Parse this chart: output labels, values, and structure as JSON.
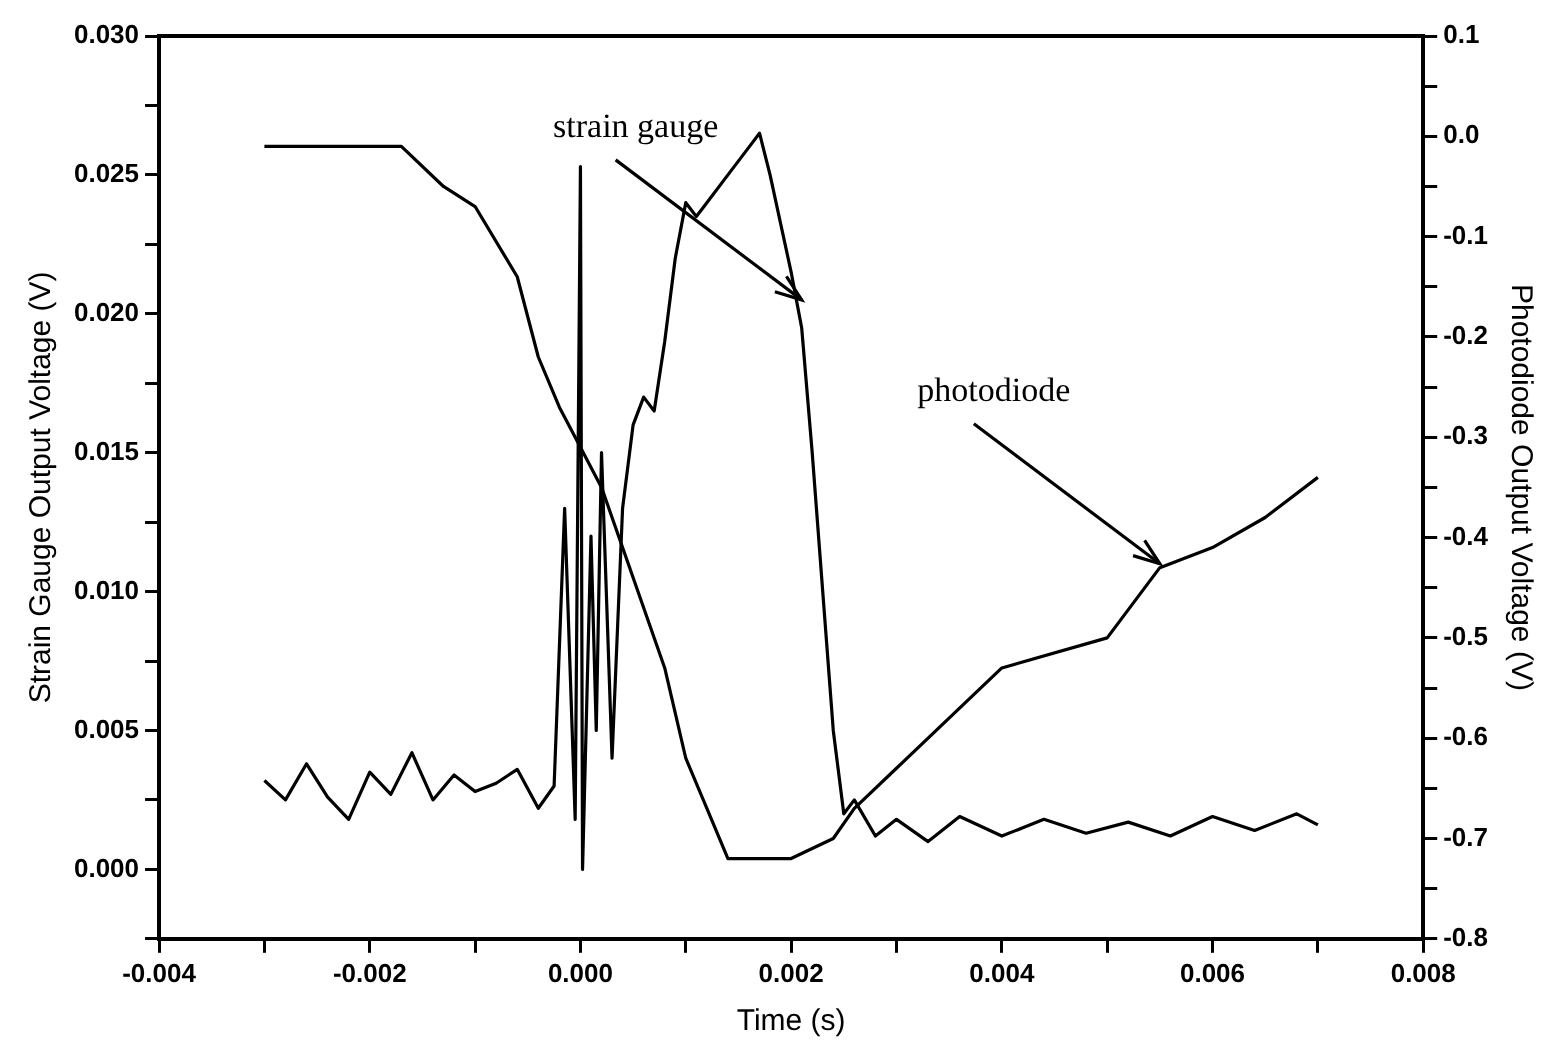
{
  "chart_data": {
    "type": "line",
    "xlabel": "Time (s)",
    "ylabel": "Strain Gauge Output Voltage (V)",
    "y2label": "Photodiode Output Voltage (V)",
    "xlim": [
      -0.004,
      0.008
    ],
    "xticks": [
      {
        "value": -0.004,
        "label": "-0.004"
      },
      {
        "value": -0.003,
        "label": null
      },
      {
        "value": -0.002,
        "label": "-0.002"
      },
      {
        "value": -0.001,
        "label": null
      },
      {
        "value": 0,
        "label": "0.000"
      },
      {
        "value": 0.001,
        "label": null
      },
      {
        "value": 0.002,
        "label": "0.002"
      },
      {
        "value": 0.003,
        "label": null
      },
      {
        "value": 0.004,
        "label": "0.004"
      },
      {
        "value": 0.005,
        "label": null
      },
      {
        "value": 0.006,
        "label": "0.006"
      },
      {
        "value": 0.007,
        "label": null
      },
      {
        "value": 0.008,
        "label": "0.008"
      }
    ],
    "ylim": [
      -0.0025,
      0.03
    ],
    "yticks": [
      {
        "value": -0.0025,
        "label": null
      },
      {
        "value": 0,
        "label": "0.000"
      },
      {
        "value": 0.0025,
        "label": null
      },
      {
        "value": 0.005,
        "label": "0.005"
      },
      {
        "value": 0.0075,
        "label": null
      },
      {
        "value": 0.01,
        "label": "0.010"
      },
      {
        "value": 0.0125,
        "label": null
      },
      {
        "value": 0.015,
        "label": "0.015"
      },
      {
        "value": 0.0175,
        "label": null
      },
      {
        "value": 0.02,
        "label": "0.020"
      },
      {
        "value": 0.0225,
        "label": null
      },
      {
        "value": 0.025,
        "label": "0.025"
      },
      {
        "value": 0.0275,
        "label": null
      },
      {
        "value": 0.03,
        "label": "0.030"
      }
    ],
    "y2lim": [
      -0.8,
      0.1
    ],
    "y2ticks": [
      {
        "value": -0.8,
        "label": "-0.8"
      },
      {
        "value": -0.75,
        "label": null
      },
      {
        "value": -0.7,
        "label": "-0.7"
      },
      {
        "value": -0.65,
        "label": null
      },
      {
        "value": -0.6,
        "label": "-0.6"
      },
      {
        "value": -0.55,
        "label": null
      },
      {
        "value": -0.5,
        "label": "-0.5"
      },
      {
        "value": -0.45,
        "label": null
      },
      {
        "value": -0.4,
        "label": "-0.4"
      },
      {
        "value": -0.35,
        "label": null
      },
      {
        "value": -0.3,
        "label": "-0.3"
      },
      {
        "value": -0.25,
        "label": null
      },
      {
        "value": -0.2,
        "label": "-0.2"
      },
      {
        "value": -0.15,
        "label": null
      },
      {
        "value": -0.1,
        "label": "-0.1"
      },
      {
        "value": -0.05,
        "label": null
      },
      {
        "value": 0,
        "label": "0.0"
      },
      {
        "value": 0.05,
        "label": null
      },
      {
        "value": 0.1,
        "label": "0.1"
      }
    ],
    "marker": "none",
    "line_style": "solid",
    "series": [
      {
        "color": "#000000",
        "x": [
          -0.003,
          -0.0028,
          -0.0026,
          -0.0024,
          -0.0022,
          -0.002,
          -0.0018,
          -0.0016,
          -0.0014,
          -0.0012,
          -0.001,
          -0.0008,
          -0.0006,
          -0.0004,
          -0.00025,
          -0.00015,
          -5e-05,
          0,
          2e-05,
          0.0001,
          0.00015,
          0.0002,
          0.0003,
          0.0004,
          0.0005,
          0.0006,
          0.0007,
          0.0008,
          0.0009,
          0.001,
          0.0011,
          0.0012,
          0.0014,
          0.0016,
          0.0017,
          0.0018,
          0.002,
          0.0021,
          0.0022,
          0.0023,
          0.0024,
          0.0025,
          0.0026,
          0.0028,
          0.003,
          0.0033,
          0.0036,
          0.004,
          0.0044,
          0.0048,
          0.0052,
          0.0056,
          0.006,
          0.0064,
          0.0068,
          0.007
        ],
        "values": [
          0.0032,
          0.0025,
          0.0038,
          0.0026,
          0.0018,
          0.0035,
          0.0027,
          0.0042,
          0.0025,
          0.0034,
          0.0028,
          0.0031,
          0.0036,
          0.0022,
          0.003,
          0.013,
          0.0018,
          0.0253,
          0,
          0.012,
          0.005,
          0.015,
          0.004,
          0.013,
          0.016,
          0.017,
          0.0165,
          0.019,
          0.022,
          0.024,
          0.0235,
          0.024,
          0.025,
          0.026,
          0.0265,
          0.025,
          0.0215,
          0.0195,
          0.015,
          0.01,
          0.005,
          0.002,
          0.0025,
          0.0012,
          0.0018,
          0.001,
          0.0019,
          0.0012,
          0.0018,
          0.0013,
          0.0017,
          0.0012,
          0.0019,
          0.0014,
          0.002,
          0.0016
        ]
      },
      {
        "color": "#000000",
        "axis": "y2",
        "x": [
          -0.003,
          -0.0022,
          -0.0017,
          -0.0013,
          -0.001,
          -0.0006,
          -0.0004,
          -0.0002,
          0,
          0.0002,
          0.0004,
          0.0006,
          0.0008,
          0.001,
          0.0012,
          0.0014,
          0.002,
          0.0024,
          0.0026,
          0.003,
          0.004,
          0.005,
          0.0055,
          0.006,
          0.0065,
          0.007
        ],
        "values": [
          -0.01,
          -0.01,
          -0.01,
          -0.05,
          -0.07,
          -0.14,
          -0.22,
          -0.27,
          -0.31,
          -0.35,
          -0.41,
          -0.47,
          -0.53,
          -0.62,
          -0.67,
          -0.72,
          -0.72,
          -0.7,
          -0.67,
          -0.63,
          -0.53,
          -0.5,
          -0.43,
          -0.41,
          -0.38,
          -0.34
        ]
      }
    ],
    "annotations": [
      {
        "text": "strain gauge",
        "x": 0.0021,
        "y": 0.0205
      },
      {
        "text": "photodiode",
        "x": 0.0055,
        "y": 0.011
      }
    ]
  }
}
